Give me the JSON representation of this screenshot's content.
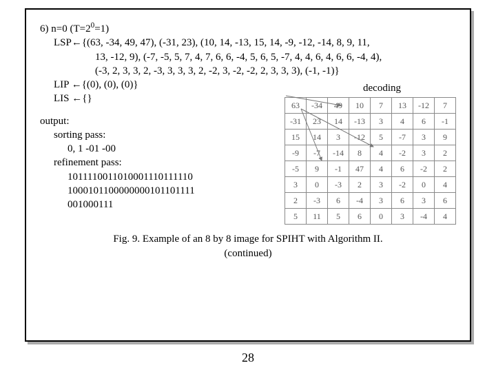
{
  "step": {
    "header": "6) n=0 (T=2",
    "header_sup": "0",
    "header_tail": "=1)",
    "lsp1": "LSP←{(63, -34, 49, 47), (-31, 23), (10, 14, -13, 15, 14, -9, -12, -14, 8, 9, 11,",
    "lsp2": "13, -12, 9), (-7, -5, 5, 7, 4, 7, 6, 6, -4, 5, 6, 5, -7, 4, 4, 6, 4, 6, 6, -4, 4),",
    "lsp3": "(-3, 2, 3, 3, 2, -3, 3, 3, 3, 2, -2, 3, -2, -2, 2, 3, 3, 3), (-1, -1)}",
    "lip": "LIP ←{(0), (0), (0)}",
    "lis": "LIS ←{}"
  },
  "decoding_label": "decoding",
  "output": {
    "label": "output:",
    "sorting_label": "sorting pass:",
    "sorting_val": "0, 1 -01 -00",
    "refine_label": "refinement pass:",
    "refine1": "1011110011010001110111110",
    "refine2": "1000101100000000101101111",
    "refine3": "001000111"
  },
  "caption": {
    "line1": "Fig. 9. Example of an 8 by 8 image for SPIHT with Algorithm II.",
    "line2": "(continued)"
  },
  "page_number": "28",
  "table": {
    "rows": [
      [
        "63",
        "-34",
        "49",
        "10",
        "7",
        "13",
        "-12",
        "7"
      ],
      [
        "-31",
        "23",
        "14",
        "-13",
        "3",
        "4",
        "6",
        "-1"
      ],
      [
        "15",
        "14",
        "3",
        "-12",
        "5",
        "-7",
        "3",
        "9"
      ],
      [
        "-9",
        "-7",
        "-14",
        "8",
        "4",
        "-2",
        "3",
        "2"
      ],
      [
        "-5",
        "9",
        "-1",
        "47",
        "4",
        "6",
        "-2",
        "2"
      ],
      [
        "3",
        "0",
        "-3",
        "2",
        "3",
        "-2",
        "0",
        "4"
      ],
      [
        "2",
        "-3",
        "6",
        "-4",
        "3",
        "6",
        "3",
        "6"
      ],
      [
        "5",
        "11",
        "5",
        "6",
        "0",
        "3",
        "-4",
        "4"
      ]
    ]
  }
}
